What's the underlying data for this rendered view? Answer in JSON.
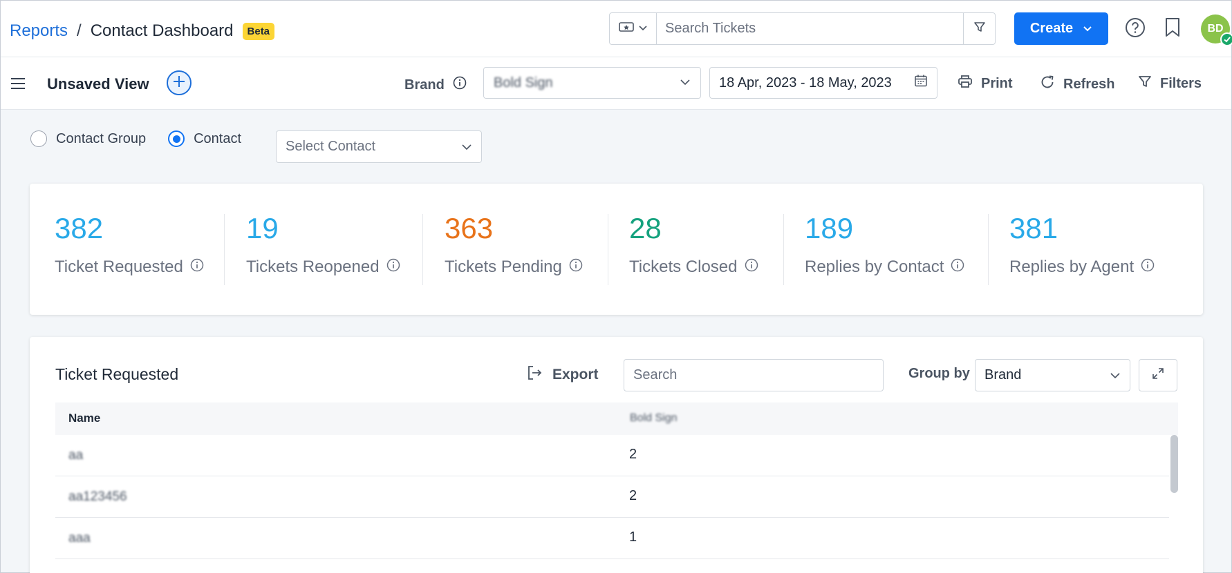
{
  "header": {
    "breadcrumb_root": "Reports",
    "breadcrumb_sep": "/",
    "breadcrumb_current": "Contact Dashboard",
    "badge": "Beta",
    "search_placeholder": "Search Tickets",
    "create_label": "Create",
    "avatar_initials": "BD"
  },
  "viewbar": {
    "title": "Unsaved View",
    "brand_label": "Brand",
    "brand_value": "Bold Sign",
    "date_range": "18 Apr, 2023 - 18 May, 2023",
    "print_label": "Print",
    "refresh_label": "Refresh",
    "filters_label": "Filters"
  },
  "scope": {
    "option_group": "Contact Group",
    "option_contact": "Contact",
    "selected": "Contact",
    "contact_placeholder": "Select Contact"
  },
  "kpis": [
    {
      "value": "382",
      "label": "Ticket Requested",
      "color": "#29a9e8"
    },
    {
      "value": "19",
      "label": "Tickets Reopened",
      "color": "#29a9e8"
    },
    {
      "value": "363",
      "label": "Tickets Pending",
      "color": "#e8731a"
    },
    {
      "value": "28",
      "label": "Tickets Closed",
      "color": "#15a27e"
    },
    {
      "value": "189",
      "label": "Replies by Contact",
      "color": "#29a9e8"
    },
    {
      "value": "381",
      "label": "Replies by Agent",
      "color": "#29a9e8"
    }
  ],
  "table": {
    "title": "Ticket Requested",
    "export_label": "Export",
    "search_placeholder": "Search",
    "group_by_label": "Group by",
    "group_by_value": "Brand",
    "columns": [
      "Name",
      "Bold Sign"
    ],
    "rows": [
      {
        "name": "aa",
        "value": "2"
      },
      {
        "name": "aa123456",
        "value": "2"
      },
      {
        "name": "aaa",
        "value": "1"
      }
    ]
  },
  "colors": {
    "accent": "#1173f3",
    "link": "#1e6fd9",
    "badge": "#fcd535",
    "avatar": "#8bc34a"
  }
}
